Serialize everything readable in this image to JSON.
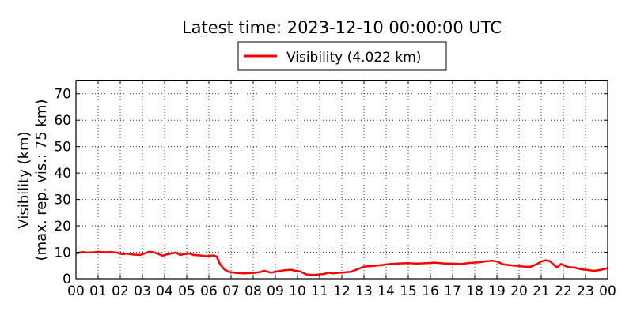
{
  "chart_data": {
    "type": "line",
    "title": "Latest time: 2023-12-10 00:00:00 UTC",
    "ylabel_line1": "Visibility (km)",
    "ylabel_line2": "(max. rep. vis.: 75 km)",
    "xlabel": "",
    "legend_position": "top-center",
    "grid": true,
    "line_color": "#ff0000",
    "xlim": [
      0,
      24
    ],
    "ylim": [
      0,
      75
    ],
    "x_ticks": [
      0,
      1,
      2,
      3,
      4,
      5,
      6,
      7,
      8,
      9,
      10,
      11,
      12,
      13,
      14,
      15,
      16,
      17,
      18,
      19,
      20,
      21,
      22,
      23,
      24
    ],
    "x_tick_labels": [
      "00",
      "01",
      "02",
      "03",
      "04",
      "05",
      "06",
      "07",
      "08",
      "09",
      "10",
      "11",
      "12",
      "13",
      "14",
      "15",
      "16",
      "17",
      "18",
      "19",
      "20",
      "21",
      "22",
      "23",
      "00"
    ],
    "y_ticks": [
      0,
      10,
      20,
      30,
      40,
      50,
      60,
      70
    ],
    "y_tick_labels": [
      "0",
      "10",
      "20",
      "30",
      "40",
      "50",
      "60",
      "70"
    ],
    "series": [
      {
        "name": "Visibility (4.022 km)",
        "x": [
          0,
          0.1,
          0.3,
          0.5,
          0.8,
          1.0,
          1.3,
          1.6,
          1.9,
          2.1,
          2.3,
          2.6,
          2.9,
          3.1,
          3.3,
          3.5,
          3.7,
          3.9,
          4.1,
          4.3,
          4.5,
          4.7,
          4.9,
          5.1,
          5.3,
          5.6,
          5.9,
          6.2,
          6.35,
          6.5,
          6.7,
          6.9,
          7.2,
          7.6,
          8.0,
          8.3,
          8.5,
          8.8,
          9.1,
          9.4,
          9.7,
          9.9,
          10.1,
          10.4,
          10.7,
          11.0,
          11.2,
          11.4,
          11.6,
          11.8,
          12.1,
          12.4,
          12.7,
          13.0,
          13.4,
          13.8,
          14.2,
          14.6,
          15.0,
          15.4,
          15.8,
          16.2,
          16.6,
          17.0,
          17.4,
          17.8,
          18.2,
          18.5,
          18.8,
          19.0,
          19.3,
          19.6,
          19.9,
          20.2,
          20.5,
          20.8,
          21.0,
          21.2,
          21.4,
          21.5,
          21.7,
          21.9,
          22.2,
          22.5,
          22.8,
          23.1,
          23.4,
          23.7,
          24.0
        ],
        "values": [
          9.5,
          9.8,
          10.1,
          9.9,
          10.0,
          10.2,
          10.0,
          10.1,
          9.8,
          9.3,
          9.5,
          9.1,
          9.0,
          9.6,
          10.2,
          10.0,
          9.4,
          8.7,
          9.2,
          9.5,
          9.9,
          9.0,
          9.3,
          9.6,
          9.0,
          8.8,
          8.5,
          8.8,
          8.4,
          5.5,
          3.5,
          2.6,
          2.2,
          2.0,
          2.2,
          2.5,
          3.0,
          2.3,
          2.8,
          3.2,
          3.4,
          3.0,
          2.8,
          1.6,
          1.4,
          1.6,
          1.8,
          2.3,
          2.0,
          2.2,
          2.4,
          2.6,
          3.6,
          4.6,
          4.8,
          5.2,
          5.6,
          5.8,
          5.9,
          5.7,
          5.9,
          6.1,
          5.8,
          5.7,
          5.6,
          6.0,
          6.2,
          6.6,
          6.8,
          6.5,
          5.4,
          5.1,
          4.9,
          4.6,
          4.5,
          5.5,
          6.5,
          7.0,
          6.6,
          5.8,
          4.3,
          5.6,
          4.4,
          4.2,
          3.6,
          3.3,
          3.0,
          3.4,
          4.0
        ]
      }
    ]
  }
}
